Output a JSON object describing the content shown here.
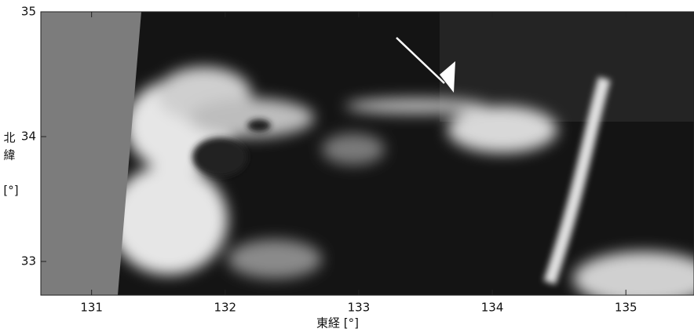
{
  "map": {
    "xlabel": "東経 [°]",
    "ylabel": [
      "北",
      "緯",
      "[°]"
    ],
    "xlim": [
      130.62,
      135.51
    ],
    "ylim": [
      32.73,
      35
    ],
    "xticks": [
      131,
      132,
      133,
      134,
      135
    ],
    "yticks": [
      33,
      34,
      35
    ]
  }
}
